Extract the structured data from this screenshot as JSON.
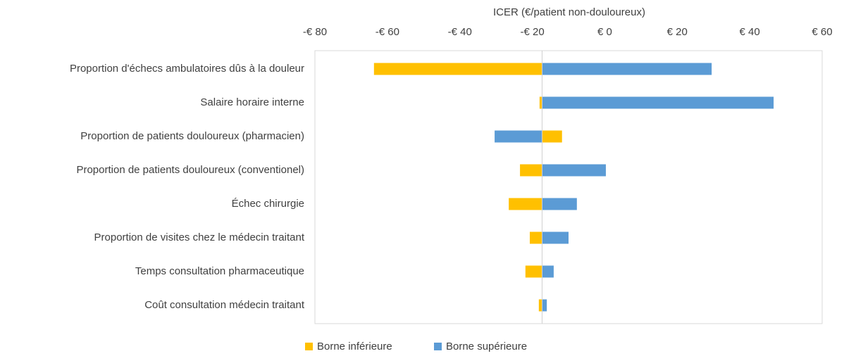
{
  "chart_data": {
    "type": "tornado",
    "x_label": "ICER (€/patient non-douloureux)",
    "categories": [
      "Proportion d'échecs ambulatoires dûs à la douleur",
      "Salaire horaire interne",
      "Proportion de patients douloureux (pharmacien)",
      "Proportion de patients douloureux (conventionel)",
      "Échec chirurgie",
      "Proportion de visites chez le médecin traitant",
      "Temps consultation pharmaceutique",
      "Coût consultation médecin traitant"
    ],
    "base": -17.3,
    "series": [
      {
        "name": "Borne inférieure",
        "color": "#FFC000",
        "values": [
          -63.7,
          -18,
          -11.8,
          -23.4,
          -26.5,
          -20.7,
          -21.9,
          -18.2
        ]
      },
      {
        "name": "Borne supérieure",
        "color": "#5B9BD5",
        "values": [
          29.5,
          46.6,
          -30.4,
          0.3,
          -7.7,
          -10,
          -14.1,
          -16
        ]
      }
    ],
    "xlim": [
      -80,
      60
    ],
    "xticks": [
      {
        "value": -80,
        "label": "-€ 80"
      },
      {
        "value": -60,
        "label": "-€ 60"
      },
      {
        "value": -40,
        "label": "-€ 40"
      },
      {
        "value": -20,
        "label": "-€ 20"
      },
      {
        "value": 0,
        "label": "€ 0"
      },
      {
        "value": 20,
        "label": "€ 20"
      },
      {
        "value": 40,
        "label": "€ 40"
      },
      {
        "value": 60,
        "label": "€ 60"
      }
    ],
    "legend": "bottom"
  }
}
